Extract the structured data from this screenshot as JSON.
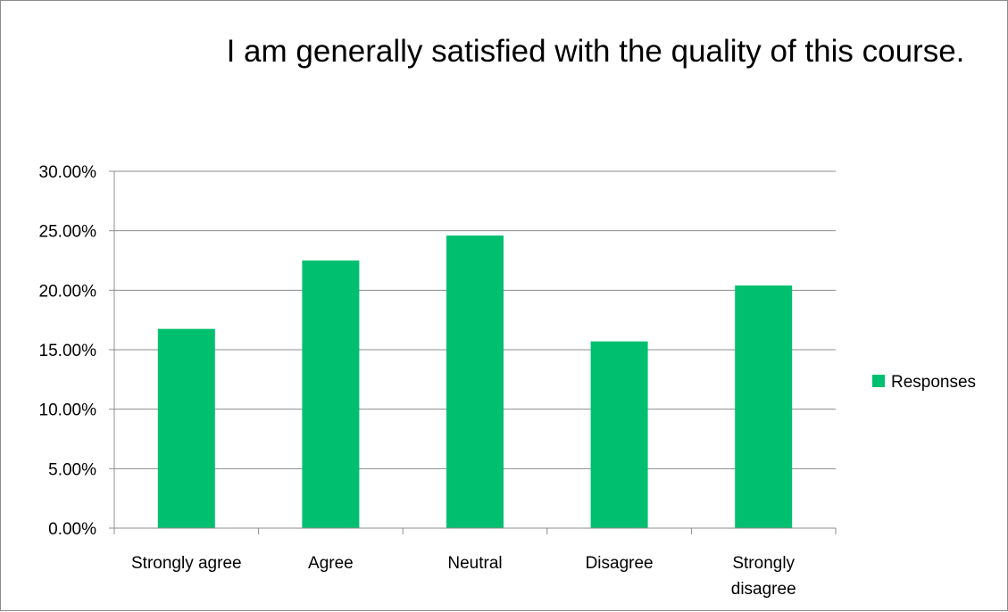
{
  "chart_data": {
    "type": "bar",
    "title": "I am generally satisfied with the quality of this course.",
    "categories": [
      "Strongly agree",
      "Agree",
      "Neutral",
      "Disagree",
      "Strongly disagree"
    ],
    "category_lines": [
      [
        "Strongly agree"
      ],
      [
        "Agree"
      ],
      [
        "Neutral"
      ],
      [
        "Disagree"
      ],
      [
        "Strongly",
        "disagree"
      ]
    ],
    "series": [
      {
        "name": "Responses",
        "color": "#00c070",
        "values": [
          16.75,
          22.5,
          24.6,
          15.7,
          20.4
        ]
      }
    ],
    "ylim": [
      0,
      30
    ],
    "y_ticks": [
      "0.00%",
      "5.00%",
      "10.00%",
      "15.00%",
      "20.00%",
      "25.00%",
      "30.00%"
    ],
    "y_tick_values": [
      0,
      5,
      10,
      15,
      20,
      25,
      30
    ],
    "xlabel": "",
    "ylabel": "",
    "grid": true,
    "legend_position": "right"
  }
}
